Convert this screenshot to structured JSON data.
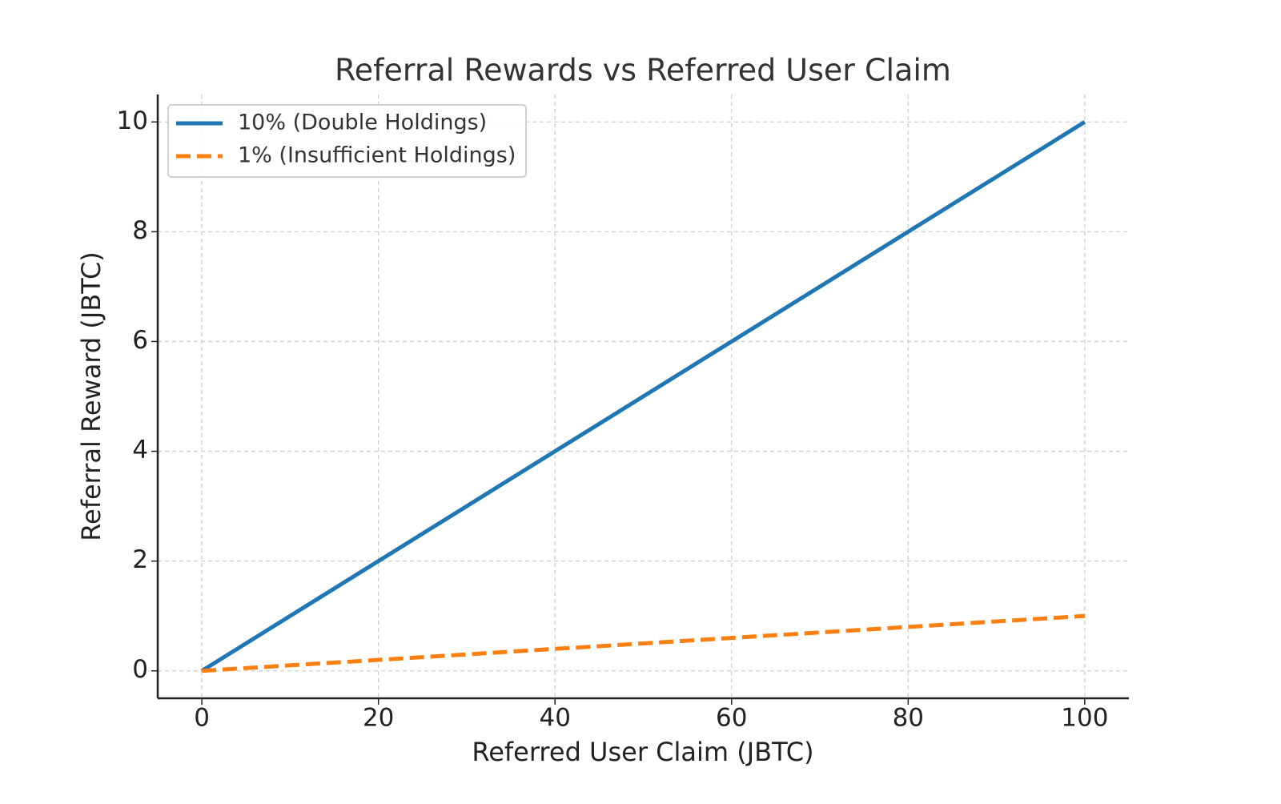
{
  "chart_data": {
    "type": "line",
    "title": "Referral Rewards vs Referred User Claim",
    "x_label": "Referred User Claim (JBTC)",
    "y_label": "Referral Reward (JBTC)",
    "x": [
      0,
      20,
      40,
      60,
      80,
      100
    ],
    "series": [
      {
        "name": "10% (Double Holdings)",
        "color": "#1f77b4",
        "style": "solid",
        "values": [
          0,
          2,
          4,
          6,
          8,
          10
        ]
      },
      {
        "name": "1% (Insufficient Holdings)",
        "color": "#ff7f0e",
        "style": "dashed",
        "values": [
          0,
          0.2,
          0.4,
          0.6,
          0.8,
          1
        ]
      }
    ],
    "xlim": [
      -5,
      105
    ],
    "xticks": [
      0,
      20,
      40,
      60,
      80,
      100
    ],
    "ylim": [
      -0.5,
      10.5
    ],
    "yticks": [
      0,
      2,
      4,
      6,
      8,
      10
    ],
    "grid": true,
    "legend": "upper left"
  }
}
